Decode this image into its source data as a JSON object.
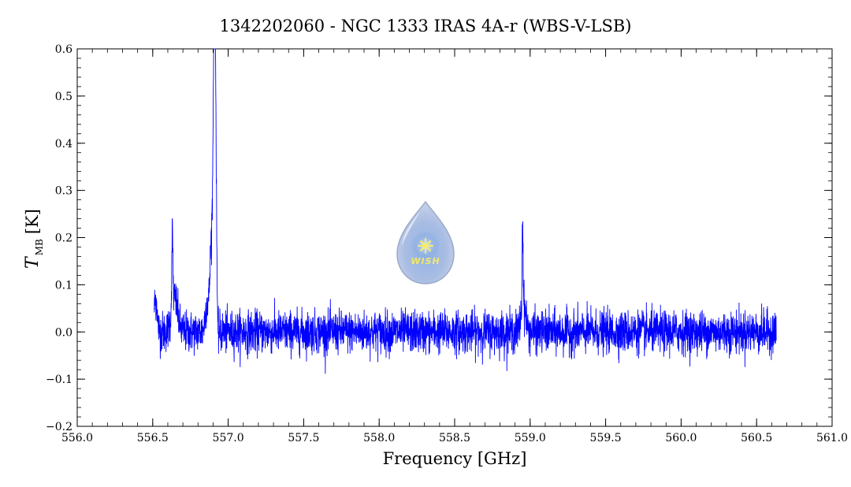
{
  "chart_data": {
    "type": "line",
    "title": "1342202060 - NGC 1333 IRAS 4A-r (WBS-V-LSB)",
    "xlabel": "Frequency [GHz]",
    "ylabel_main": "T",
    "ylabel_sub": "MB",
    "ylabel_unit": "[K]",
    "xlim": [
      556.0,
      561.0
    ],
    "ylim": [
      -0.2,
      0.6
    ],
    "xticks": [
      556.0,
      556.5,
      557.0,
      557.5,
      558.0,
      558.5,
      559.0,
      559.5,
      560.0,
      560.5,
      561.0
    ],
    "xtick_labels": [
      "556.0",
      "556.5",
      "557.0",
      "557.5",
      "558.0",
      "558.5",
      "559.0",
      "559.5",
      "560.0",
      "560.5",
      "561.0"
    ],
    "yticks": [
      -0.2,
      -0.1,
      0.0,
      0.1,
      0.2,
      0.3,
      0.4,
      0.5,
      0.6
    ],
    "ytick_labels": [
      "−0.2",
      "−0.1",
      "0.0",
      "0.1",
      "0.2",
      "0.3",
      "0.4",
      "0.5",
      "0.6"
    ],
    "grid": false,
    "series": [
      {
        "color": "#0000ff",
        "x_start": 556.51,
        "x_end": 560.63,
        "noise_rms": 0.022,
        "features": [
          {
            "x": 556.52,
            "peak": 0.055,
            "width": 0.01
          },
          {
            "x": 556.63,
            "peak": 0.155,
            "width": 0.004
          },
          {
            "x": 556.645,
            "peak": 0.07,
            "width": 0.02
          },
          {
            "x": 556.86,
            "peak": 0.06,
            "width": 0.012
          },
          {
            "x": 556.89,
            "peak": 0.2,
            "width": 0.01
          },
          {
            "x": 556.905,
            "peak": 0.42,
            "width": 0.006
          },
          {
            "x": 556.91,
            "peak": 0.515,
            "width": 0.004
          },
          {
            "x": 556.918,
            "peak": 0.38,
            "width": 0.004
          },
          {
            "x": 556.926,
            "peak": 0.12,
            "width": 0.004
          },
          {
            "x": 556.93,
            "peak": -0.06,
            "width": 0.003
          },
          {
            "x": 558.95,
            "peak": 0.195,
            "width": 0.003
          },
          {
            "x": 558.955,
            "peak": 0.06,
            "width": 0.015
          }
        ]
      }
    ]
  },
  "logo": {
    "text": "WISH",
    "fill_color": "#a9bde3",
    "star_color": "#f5ec6b"
  }
}
